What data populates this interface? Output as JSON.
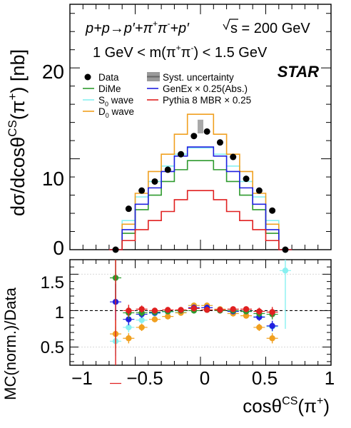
{
  "chart_data": [
    {
      "type": "line",
      "panel": "main",
      "ylabel_parts": [
        "dσ/dcosθ",
        "CS",
        "(π",
        "+",
        ") [nb]"
      ],
      "xlim": [
        -1,
        1
      ],
      "ylim": [
        0,
        27
      ],
      "grid": false,
      "yticks": [
        "0",
        "10",
        "20"
      ],
      "process_parts": [
        "p+p→p′+π",
        "+",
        "π",
        "-",
        "+p′"
      ],
      "sqrt_s": "s = 200 GeV",
      "mass_cut_parts": [
        "1 GeV < m(π",
        "+",
        "π",
        "-",
        ") < 1.5 GeV"
      ],
      "experiment": "STAR",
      "legend": {
        "data": "Data",
        "syst": "Syst. uncertainty",
        "dime": "DiMe",
        "genex": "GenEx × 0.25(Abs.)",
        "s0_parts": [
          "S",
          "0",
          " wave"
        ],
        "pythia": "Pythia 8 MBR × 0.25",
        "d0_parts": [
          "D",
          "0",
          " wave"
        ]
      },
      "colors": {
        "data": "#000000",
        "dime": "#2e9a2e",
        "s0": "#88f0f0",
        "d0": "#f0a020",
        "genex": "#2020e0",
        "pythia": "#e02020",
        "syst": "#9a9a9a"
      },
      "bin_edges": [
        -0.7,
        -0.6,
        -0.5,
        -0.4,
        -0.3,
        -0.2,
        -0.1,
        0.0,
        0.1,
        0.2,
        0.3,
        0.4,
        0.5,
        0.6,
        0.7
      ],
      "data_points": {
        "x": [
          -0.65,
          -0.55,
          -0.45,
          -0.35,
          -0.25,
          -0.15,
          -0.05,
          0.05,
          0.15,
          0.25,
          0.35,
          0.45,
          0.55,
          0.65
        ],
        "y": [
          0.0,
          4.5,
          6.5,
          7.5,
          8.8,
          10.5,
          12.5,
          13.0,
          11.8,
          10.2,
          7.8,
          6.5,
          4.3,
          0.0
        ]
      },
      "series": [
        {
          "name": "DiMe",
          "values": [
            0.0,
            1.8,
            4.4,
            6.0,
            7.5,
            8.8,
            9.8,
            9.8,
            8.8,
            7.5,
            6.0,
            4.4,
            1.8,
            0.0
          ]
        },
        {
          "name": "S0 wave",
          "values": [
            0.0,
            3.2,
            5.8,
            7.5,
            9.2,
            10.5,
            11.2,
            11.2,
            10.5,
            9.2,
            7.5,
            5.8,
            3.2,
            0.0
          ]
        },
        {
          "name": "D0 wave",
          "values": [
            0.0,
            2.8,
            6.2,
            8.6,
            10.5,
            12.7,
            14.9,
            14.9,
            12.7,
            10.5,
            8.6,
            6.2,
            2.8,
            0.0
          ]
        },
        {
          "name": "GenEx × 0.25(Abs.)",
          "values": [
            0.0,
            2.2,
            5.0,
            6.8,
            8.6,
            10.3,
            11.3,
            11.3,
            10.3,
            8.6,
            6.8,
            5.0,
            2.2,
            0.0
          ]
        },
        {
          "name": "Pythia 8 MBR × 0.25",
          "values": [
            0.0,
            1.0,
            2.2,
            3.2,
            4.2,
            5.5,
            6.5,
            6.5,
            5.5,
            4.2,
            3.2,
            2.2,
            1.0,
            0.0
          ]
        }
      ],
      "syst_band": {
        "x": 0.0,
        "y_low": 12.8,
        "y_high": 14.3
      }
    },
    {
      "type": "scatter",
      "panel": "ratio",
      "ylabel": "MC(norm.)/Data",
      "xlabel_parts": [
        "cosθ",
        "CS",
        "(π",
        "+",
        ")"
      ],
      "xlim": [
        -1,
        1
      ],
      "ylim": [
        0.25,
        1.7
      ],
      "xticks": [
        "−1",
        "−0.5",
        "0",
        "0.5",
        "1"
      ],
      "yticks": [
        "0.5",
        "1",
        "1.5"
      ],
      "reference_line": 1.0,
      "x": [
        -0.65,
        -0.55,
        -0.45,
        -0.35,
        -0.25,
        -0.15,
        -0.05,
        0.05,
        0.15,
        0.25,
        0.35,
        0.45,
        0.55,
        0.65
      ],
      "series": [
        {
          "name": "DiMe",
          "values": [
            1.45,
            0.97,
            0.97,
            0.98,
            0.99,
            1.0,
            1.0,
            1.01,
            1.0,
            1.0,
            0.99,
            0.96,
            0.95,
            null
          ],
          "yerr": [
            0.3,
            0.08,
            0.05,
            0.04,
            0.04,
            0.04,
            0.04,
            0.04,
            0.04,
            0.04,
            0.04,
            0.05,
            0.07,
            null
          ]
        },
        {
          "name": "S0 wave",
          "values": [
            0.58,
            0.77,
            0.87,
            0.96,
            0.98,
            0.98,
            1.07,
            1.07,
            1.01,
            0.99,
            0.99,
            0.92,
            0.78,
            1.55
          ],
          "yerr": [
            0.2,
            0.07,
            0.05,
            0.04,
            0.04,
            0.04,
            0.04,
            0.04,
            0.04,
            0.04,
            0.04,
            0.05,
            0.07,
            0.8
          ]
        },
        {
          "name": "D0 wave",
          "values": [
            0.68,
            0.62,
            0.77,
            0.88,
            0.92,
            0.97,
            1.07,
            1.07,
            1.02,
            0.96,
            0.93,
            0.77,
            0.62,
            null
          ],
          "yerr": [
            0.2,
            0.07,
            0.05,
            0.04,
            0.04,
            0.04,
            0.04,
            0.04,
            0.04,
            0.04,
            0.04,
            0.05,
            0.07,
            null
          ]
        },
        {
          "name": "GenEx × 0.25(Abs.)",
          "values": [
            1.12,
            0.88,
            0.95,
            0.97,
            0.99,
            1.0,
            1.04,
            1.04,
            1.01,
            0.99,
            0.99,
            0.91,
            0.79,
            null
          ],
          "yerr": [
            0.25,
            0.08,
            0.05,
            0.04,
            0.04,
            0.04,
            0.04,
            0.04,
            0.04,
            0.04,
            0.04,
            0.05,
            0.07,
            null
          ]
        },
        {
          "name": "Pythia 8 MBR × 0.25",
          "values": [
            0.0,
            1.0,
            1.02,
            1.0,
            1.01,
            1.01,
            1.03,
            1.01,
            1.01,
            1.02,
            1.02,
            0.99,
            0.98,
            null
          ],
          "yerr": [
            1.7,
            0.08,
            0.05,
            0.04,
            0.04,
            0.04,
            0.04,
            0.04,
            0.04,
            0.04,
            0.04,
            0.05,
            0.07,
            null
          ]
        }
      ]
    }
  ]
}
